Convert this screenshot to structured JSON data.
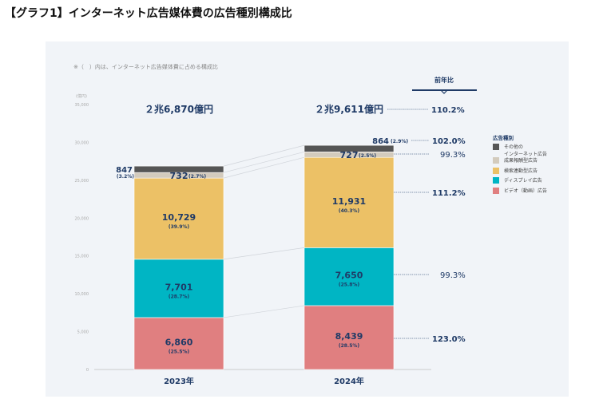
{
  "title": "【グラフ1】インターネット広告媒体費の広告種別構成比",
  "chart_data": {
    "type": "stacked-bar",
    "note": "※（　）内は、インターネット広告媒体費に占める構成比",
    "ylabel": "(億円)",
    "ylim": [
      0,
      35000
    ],
    "yticks": [
      0,
      5000,
      10000,
      15000,
      20000,
      25000,
      30000,
      35000
    ],
    "ytick_labels": [
      "0",
      "5,000",
      "10,000",
      "15,000",
      "20,000",
      "25,000",
      "30,000",
      "35,000"
    ],
    "categories": [
      "2023年",
      "2024年"
    ],
    "totals_label": [
      "２兆6,870億円",
      "２兆9,611億円"
    ],
    "legend_title": "広告種別",
    "legend_position": "right",
    "yoy_title": "前年比",
    "total_yoy": "110.2%",
    "series": [
      {
        "name": "ビデオ（動画）広告",
        "color": "#e07f80",
        "values": [
          6860,
          8439
        ],
        "labels": [
          "6,860",
          "8,439"
        ],
        "shares": [
          "(25.5%)",
          "(28.5%)"
        ],
        "yoy": "123.0%"
      },
      {
        "name": "ディスプレイ広告",
        "color": "#00b5c4",
        "values": [
          7701,
          7650
        ],
        "labels": [
          "7,701",
          "7,650"
        ],
        "shares": [
          "(28.7%)",
          "(25.8%)"
        ],
        "yoy": "99.3%"
      },
      {
        "name": "検索連動型広告",
        "color": "#ecc166",
        "values": [
          10729,
          11931
        ],
        "labels": [
          "10,729",
          "11,931"
        ],
        "shares": [
          "(39.9%)",
          "(40.3%)"
        ],
        "yoy": "111.2%"
      },
      {
        "name": "成果報酬型広告",
        "color": "#d3cbbd",
        "values": [
          732,
          727
        ],
        "labels": [
          "732",
          "727"
        ],
        "shares": [
          "(2.7%)",
          "(2.5%)"
        ],
        "yoy": "99.3%"
      },
      {
        "name": "その他の\nインターネット広告",
        "color": "#555555",
        "values": [
          847,
          864
        ],
        "labels": [
          "847",
          "864"
        ],
        "shares": [
          "(3.2%)",
          "(2.9%)"
        ],
        "yoy": "102.0%"
      }
    ]
  }
}
